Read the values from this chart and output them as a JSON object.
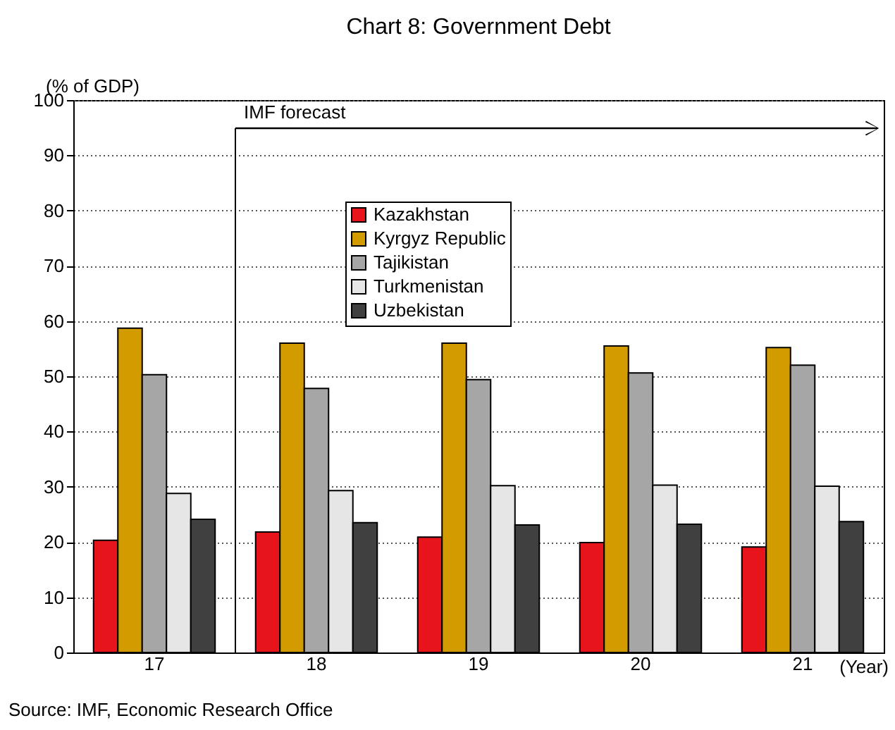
{
  "chart_data": {
    "type": "bar",
    "title": "Chart 8: Government Debt",
    "categories": [
      "17",
      "18",
      "19",
      "20",
      "21"
    ],
    "series": [
      {
        "name": "Kazakhstan",
        "color": "#e8141b",
        "values": [
          20.3,
          21.8,
          20.9,
          19.9,
          19.1
        ]
      },
      {
        "name": "Kyrgyz Republic",
        "color": "#d29b00",
        "values": [
          58.7,
          56.0,
          56.0,
          55.5,
          55.2
        ]
      },
      {
        "name": "Tajikistan",
        "color": "#a6a6a6",
        "values": [
          50.3,
          47.8,
          49.4,
          50.6,
          52.0
        ]
      },
      {
        "name": "Turkmenistan",
        "color": "#e6e6e6",
        "values": [
          28.8,
          29.3,
          30.2,
          30.3,
          30.1
        ]
      },
      {
        "name": "Uzbekistan",
        "color": "#404040",
        "values": [
          24.1,
          23.5,
          23.1,
          23.2,
          23.7
        ]
      }
    ],
    "ylabel": "(% of GDP)",
    "xlabel": "(Year)",
    "ylim": [
      0,
      100
    ],
    "yticks": [
      0,
      10,
      20,
      30,
      40,
      50,
      60,
      70,
      80,
      90,
      100
    ],
    "grid": "y",
    "legend": "top",
    "ref_lines": [
      {
        "axis": "x",
        "value": "18",
        "label": "IMF forecast"
      }
    ],
    "annotations": [
      "Source: IMF, Economic Research Office"
    ]
  }
}
